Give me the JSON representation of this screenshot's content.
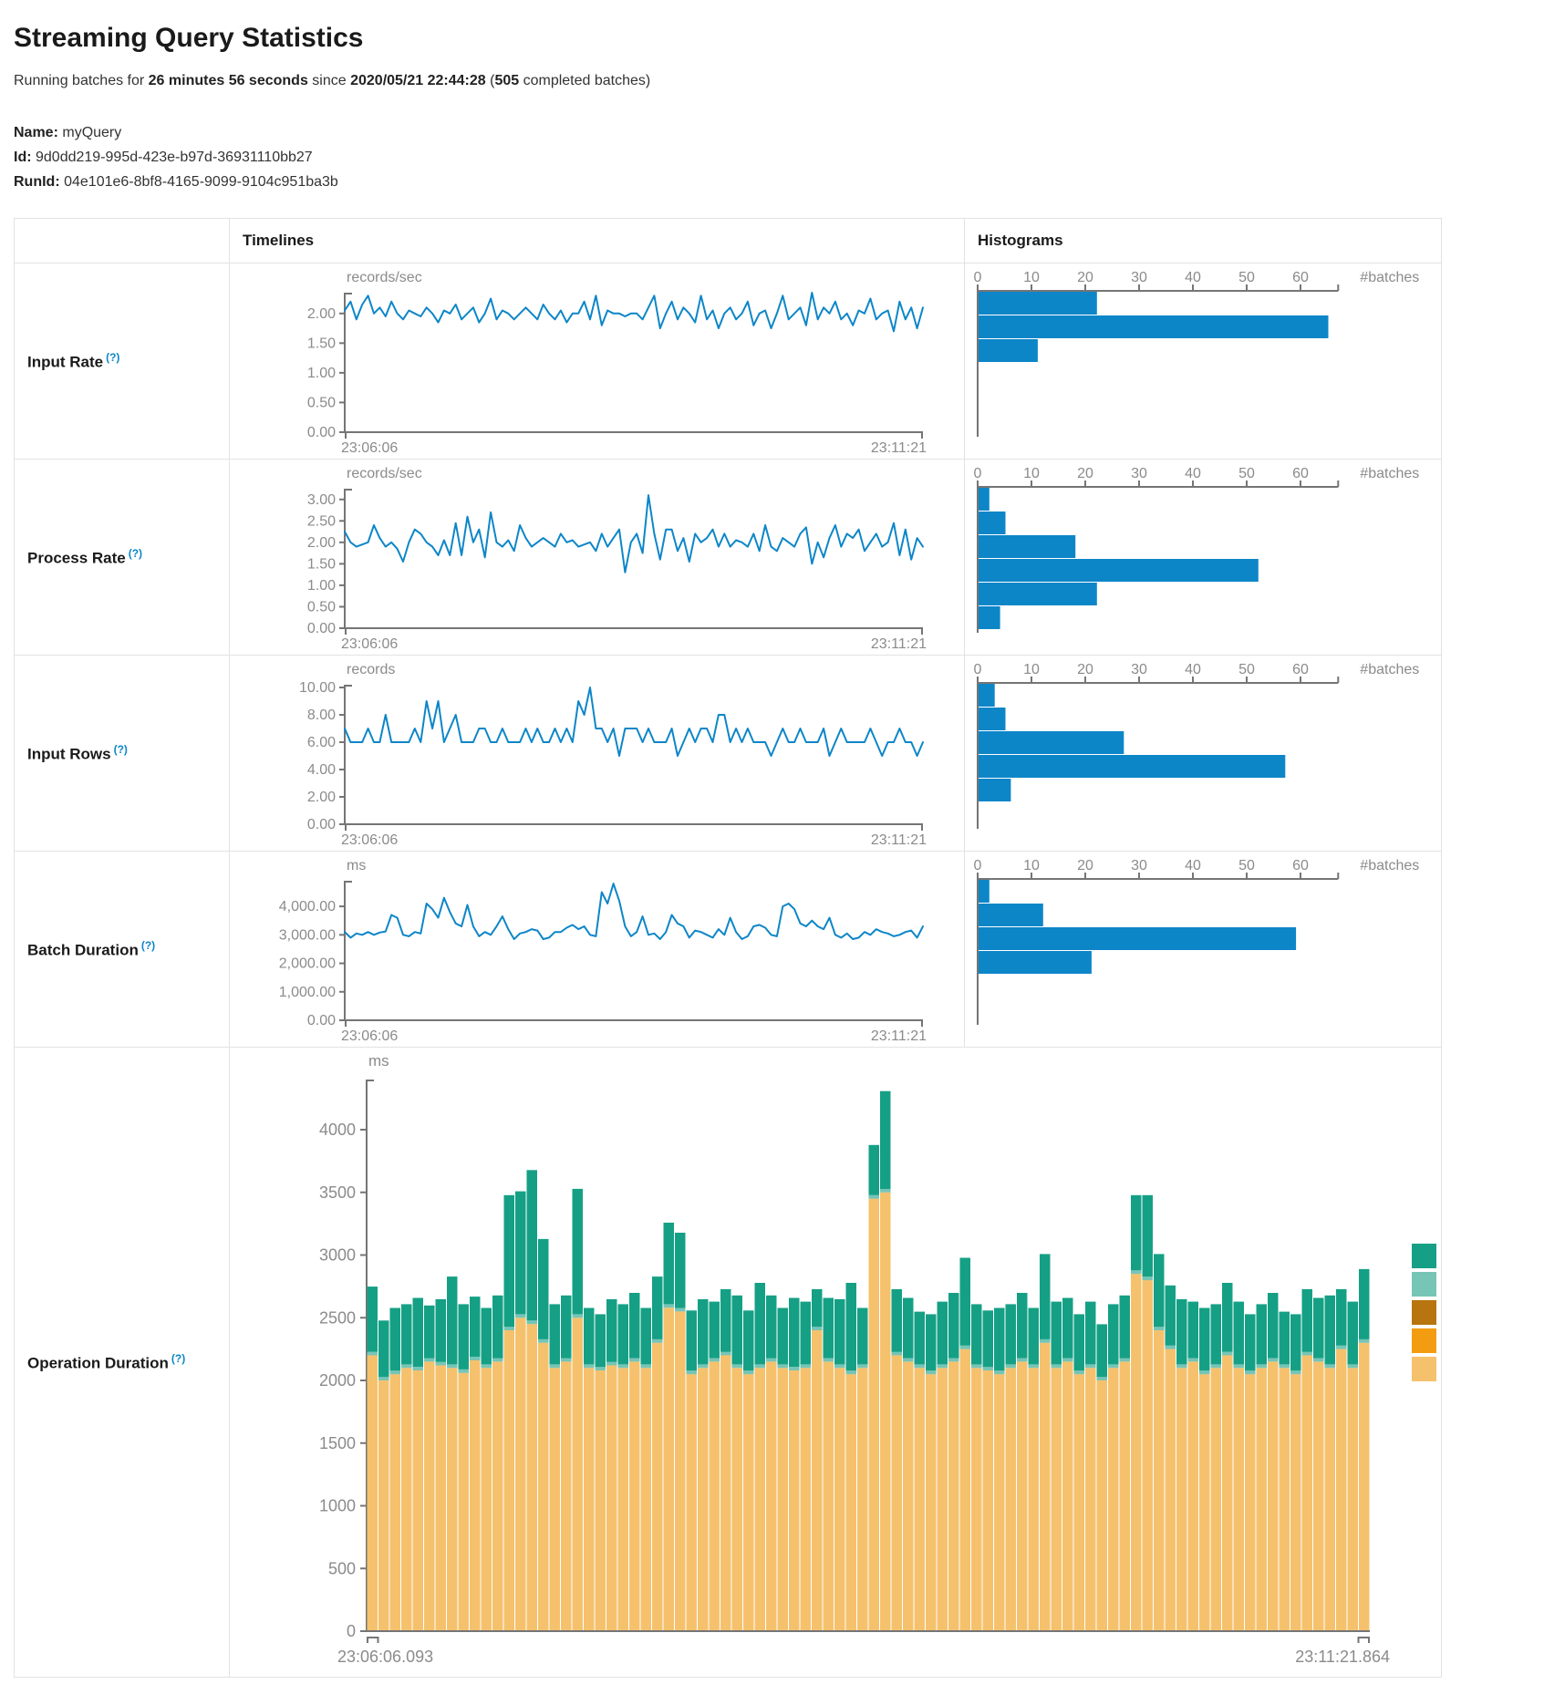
{
  "header": {
    "title": "Streaming Query Statistics",
    "subtitle_parts": {
      "t1": "Running batches for ",
      "b1": "26 minutes 56 seconds",
      "t2": " since ",
      "b2": "2020/05/21 22:44:28",
      "t3": " (",
      "b3": "505",
      "t4": " completed batches)"
    },
    "meta": [
      {
        "label": "Name:",
        "value": "myQuery"
      },
      {
        "label": "Id:",
        "value": "9d0dd219-995d-423e-b97d-36931110bb27"
      },
      {
        "label": "RunId:",
        "value": "04e101e6-8bf8-4165-9099-9104c951ba3b"
      }
    ]
  },
  "table": {
    "headers": {
      "timelines": "Timelines",
      "histograms": "Histograms"
    },
    "rows": [
      {
        "label": "Input Rate",
        "help": "(?)"
      },
      {
        "label": "Process Rate",
        "help": "(?)"
      },
      {
        "label": "Input Rows",
        "help": "(?)"
      },
      {
        "label": "Batch Duration",
        "help": "(?)"
      },
      {
        "label": "Operation Duration",
        "help": "(?)"
      }
    ]
  },
  "colors": {
    "line_blue": "#0d86c8",
    "axis_gray": "#757575",
    "label_gray": "#8b8b8b",
    "help_blue": "#0d86c8"
  },
  "chart_data": [
    {
      "id": "input_rate_timeline",
      "type": "line",
      "title": "Input Rate",
      "ylabel": "records/sec",
      "x_range": [
        "23:06:06",
        "23:11:21"
      ],
      "ylim": [
        0,
        2.35
      ],
      "ytick_values": [
        0,
        0.5,
        1,
        1.5,
        2
      ],
      "ytick_labels": [
        "0.00",
        "0.50",
        "1.00",
        "1.50",
        "2.00"
      ],
      "values": [
        2.05,
        2.2,
        1.9,
        2.15,
        2.3,
        2.0,
        2.1,
        1.95,
        2.2,
        2.0,
        1.9,
        2.05,
        2.0,
        1.95,
        2.1,
        2.0,
        1.85,
        2.05,
        2.0,
        2.15,
        1.9,
        2.0,
        2.1,
        1.85,
        2.0,
        2.25,
        1.9,
        2.05,
        2.0,
        1.9,
        2.0,
        2.1,
        2.0,
        1.9,
        2.15,
        2.0,
        1.9,
        2.05,
        1.85,
        2.0,
        2.0,
        2.2,
        1.9,
        2.3,
        1.8,
        2.05,
        2.0,
        2.0,
        1.95,
        2.0,
        2.0,
        1.9,
        2.1,
        2.3,
        1.75,
        2.0,
        2.2,
        1.9,
        2.1,
        2.0,
        1.85,
        2.3,
        1.9,
        2.05,
        1.75,
        2.0,
        2.1,
        1.9,
        2.0,
        2.2,
        1.8,
        2.0,
        2.05,
        1.75,
        2.0,
        2.3,
        1.9,
        2.0,
        2.1,
        1.8,
        2.35,
        1.9,
        2.1,
        2.0,
        2.2,
        1.9,
        2.0,
        1.8,
        2.05,
        2.0,
        2.25,
        1.9,
        2.0,
        2.05,
        1.7,
        2.2,
        1.9,
        2.1,
        1.75,
        2.1
      ]
    },
    {
      "id": "input_rate_histogram",
      "type": "bar",
      "orientation": "horizontal",
      "title": "Input Rate histogram",
      "xlabel": "#batches",
      "xlim": [
        0,
        67
      ],
      "xticks": [
        0,
        10,
        20,
        30,
        40,
        50,
        60
      ],
      "values": [
        22,
        65,
        11
      ]
    },
    {
      "id": "process_rate_timeline",
      "type": "line",
      "title": "Process Rate",
      "ylabel": "records/sec",
      "x_range": [
        "23:06:06",
        "23:11:21"
      ],
      "ylim": [
        0,
        3.25
      ],
      "ytick_values": [
        0,
        0.5,
        1,
        1.5,
        2,
        2.5,
        3
      ],
      "ytick_labels": [
        "0.00",
        "0.50",
        "1.00",
        "1.50",
        "2.00",
        "2.50",
        "3.00"
      ],
      "values": [
        2.25,
        2.0,
        1.9,
        1.95,
        2.0,
        2.4,
        2.1,
        1.9,
        2.0,
        1.85,
        1.55,
        2.0,
        2.3,
        2.2,
        2.0,
        1.9,
        1.7,
        2.05,
        1.7,
        2.45,
        1.7,
        2.6,
        2.0,
        2.3,
        1.65,
        2.7,
        2.0,
        1.9,
        2.05,
        1.8,
        2.4,
        2.1,
        1.9,
        2.0,
        2.1,
        2.0,
        1.9,
        2.2,
        2.0,
        2.05,
        1.9,
        1.95,
        2.0,
        1.8,
        2.2,
        1.9,
        2.1,
        2.3,
        1.3,
        2.0,
        2.2,
        1.75,
        3.1,
        2.2,
        1.6,
        2.3,
        2.3,
        1.8,
        2.1,
        1.55,
        2.2,
        2.0,
        2.1,
        2.3,
        1.9,
        2.2,
        1.9,
        2.05,
        2.0,
        1.9,
        2.2,
        1.8,
        2.4,
        1.9,
        1.8,
        2.1,
        2.0,
        1.9,
        2.2,
        2.35,
        1.5,
        2.0,
        1.65,
        2.1,
        2.4,
        1.9,
        2.2,
        2.1,
        2.3,
        1.8,
        2.0,
        2.2,
        1.9,
        2.0,
        2.45,
        1.7,
        2.3,
        1.6,
        2.1,
        1.9
      ]
    },
    {
      "id": "process_rate_histogram",
      "type": "bar",
      "orientation": "horizontal",
      "title": "Process Rate histogram",
      "xlabel": "#batches",
      "xlim": [
        0,
        67
      ],
      "xticks": [
        0,
        10,
        20,
        30,
        40,
        50,
        60
      ],
      "values": [
        2,
        5,
        18,
        52,
        22,
        4
      ]
    },
    {
      "id": "input_rows_timeline",
      "type": "line",
      "title": "Input Rows",
      "ylabel": "records",
      "x_range": [
        "23:06:06",
        "23:11:21"
      ],
      "ylim": [
        0,
        10.2
      ],
      "ytick_values": [
        0,
        2,
        4,
        6,
        8,
        10
      ],
      "ytick_labels": [
        "0.00",
        "2.00",
        "4.00",
        "6.00",
        "8.00",
        "10.00"
      ],
      "values": [
        7,
        6,
        6,
        6,
        7,
        6,
        6,
        8,
        6,
        6,
        6,
        6,
        7,
        6,
        9,
        7,
        9,
        6,
        7,
        8,
        6,
        6,
        6,
        7,
        7,
        6,
        6,
        7,
        6,
        6,
        6,
        7,
        6,
        7,
        6,
        6,
        7,
        6,
        7,
        6,
        9,
        8,
        10,
        7,
        7,
        6,
        7,
        5,
        7,
        7,
        7,
        6,
        7,
        6,
        6,
        6,
        7,
        5,
        6,
        7,
        6,
        7,
        7,
        6,
        8,
        8,
        6,
        7,
        6,
        7,
        6,
        6,
        6,
        5,
        6,
        7,
        6,
        6,
        7,
        6,
        6,
        6,
        7,
        5,
        6,
        7,
        6,
        6,
        6,
        6,
        7,
        6,
        5,
        6,
        6,
        7,
        6,
        6,
        5,
        6
      ]
    },
    {
      "id": "input_rows_histogram",
      "type": "bar",
      "orientation": "horizontal",
      "title": "Input Rows histogram",
      "xlabel": "#batches",
      "xlim": [
        0,
        67
      ],
      "xticks": [
        0,
        10,
        20,
        30,
        40,
        50,
        60
      ],
      "values": [
        3,
        5,
        27,
        57,
        6
      ]
    },
    {
      "id": "batch_duration_timeline",
      "type": "line",
      "title": "Batch Duration",
      "ylabel": "ms",
      "x_range": [
        "23:06:06",
        "23:11:21"
      ],
      "ylim": [
        0,
        4900
      ],
      "ytick_values": [
        0,
        1000,
        2000,
        3000,
        4000
      ],
      "ytick_labels": [
        "0.00",
        "1,000.00",
        "2,000.00",
        "3,000.00",
        "4,000.00"
      ],
      "values": [
        3100,
        2900,
        3050,
        3000,
        3100,
        3000,
        3080,
        3120,
        3700,
        3600,
        3000,
        2950,
        3100,
        3050,
        4100,
        3900,
        3600,
        4300,
        3800,
        3400,
        3300,
        4050,
        3300,
        2950,
        3100,
        3000,
        3300,
        3650,
        3200,
        2850,
        3050,
        3100,
        3200,
        3150,
        2850,
        2900,
        3100,
        3100,
        3250,
        3350,
        3200,
        3300,
        3000,
        2950,
        4500,
        4100,
        4800,
        4200,
        3300,
        2950,
        3100,
        3650,
        3000,
        3050,
        2850,
        3100,
        3700,
        3400,
        3300,
        2900,
        3150,
        3100,
        3000,
        2900,
        3200,
        3000,
        3600,
        3100,
        2850,
        2950,
        3300,
        3350,
        3250,
        3000,
        2950,
        4000,
        4100,
        3900,
        3400,
        3300,
        3500,
        3300,
        3200,
        3600,
        3000,
        2900,
        3050,
        2850,
        2900,
        3100,
        3000,
        3200,
        3100,
        3050,
        2950,
        3000,
        3100,
        3150,
        2900,
        3300
      ]
    },
    {
      "id": "batch_duration_histogram",
      "type": "bar",
      "orientation": "horizontal",
      "title": "Batch Duration histogram",
      "xlabel": "#batches",
      "xlim": [
        0,
        67
      ],
      "xticks": [
        0,
        10,
        20,
        30,
        40,
        50,
        60
      ],
      "values": [
        2,
        12,
        59,
        21
      ]
    },
    {
      "id": "operation_duration",
      "type": "stacked-bar",
      "title": "Operation Duration",
      "ylabel": "ms",
      "x_range": [
        "23:06:06.093",
        "23:11:21.864"
      ],
      "ylim": [
        0,
        4400
      ],
      "ytick_values": [
        0,
        500,
        1000,
        1500,
        2000,
        2500,
        3000,
        3500,
        4000
      ],
      "ytick_labels": [
        "0",
        "500",
        "1000",
        "1500",
        "2000",
        "2500",
        "3000",
        "3500",
        "4000"
      ],
      "legend_colors": [
        "#15a085",
        "#76c5b6",
        "#b8740e",
        "#f39c12",
        "#f6c16d"
      ],
      "series": [
        {
          "name": "teal",
          "color": "#15a085",
          "values": [
            520,
            450,
            500,
            480,
            550,
            420,
            500,
            700,
            520,
            480,
            450,
            500,
            1050,
            980,
            1200,
            800,
            480,
            500,
            1000,
            450,
            420,
            500,
            480,
            520,
            450,
            500,
            650,
            600,
            480,
            520,
            450,
            500,
            550,
            480,
            650,
            500,
            450,
            550,
            500,
            300,
            480,
            520,
            700,
            450,
            400,
            780,
            500,
            480,
            420,
            450,
            500,
            520,
            700,
            480,
            450,
            500,
            480,
            520,
            450,
            680,
            500,
            480,
            450,
            500,
            420,
            480,
            500,
            600,
            650,
            580,
            480,
            520,
            450,
            500,
            480,
            550,
            500,
            450,
            480,
            520,
            420,
            450,
            500,
            480,
            550,
            450,
            500,
            560
          ]
        },
        {
          "name": "light-teal",
          "color": "#76c5b6",
          "constant": 28
        },
        {
          "name": "dark-orange",
          "color": "#b8740e",
          "constant": 0
        },
        {
          "name": "orange",
          "color": "#f39c12",
          "constant": 0
        },
        {
          "name": "light-orange",
          "color": "#f6c16d",
          "values": [
            2200,
            2000,
            2050,
            2100,
            2080,
            2150,
            2120,
            2100,
            2060,
            2160,
            2100,
            2150,
            2400,
            2500,
            2450,
            2300,
            2100,
            2150,
            2500,
            2100,
            2080,
            2120,
            2100,
            2150,
            2100,
            2300,
            2580,
            2550,
            2050,
            2100,
            2150,
            2200,
            2100,
            2050,
            2100,
            2150,
            2100,
            2080,
            2100,
            2400,
            2150,
            2100,
            2050,
            2100,
            3450,
            3500,
            2200,
            2150,
            2100,
            2050,
            2100,
            2150,
            2250,
            2100,
            2080,
            2050,
            2100,
            2150,
            2100,
            2300,
            2100,
            2150,
            2050,
            2100,
            2000,
            2100,
            2150,
            2850,
            2800,
            2400,
            2250,
            2100,
            2150,
            2050,
            2100,
            2200,
            2100,
            2050,
            2100,
            2150,
            2100,
            2050,
            2200,
            2150,
            2100,
            2250,
            2100,
            2300
          ]
        }
      ]
    }
  ]
}
